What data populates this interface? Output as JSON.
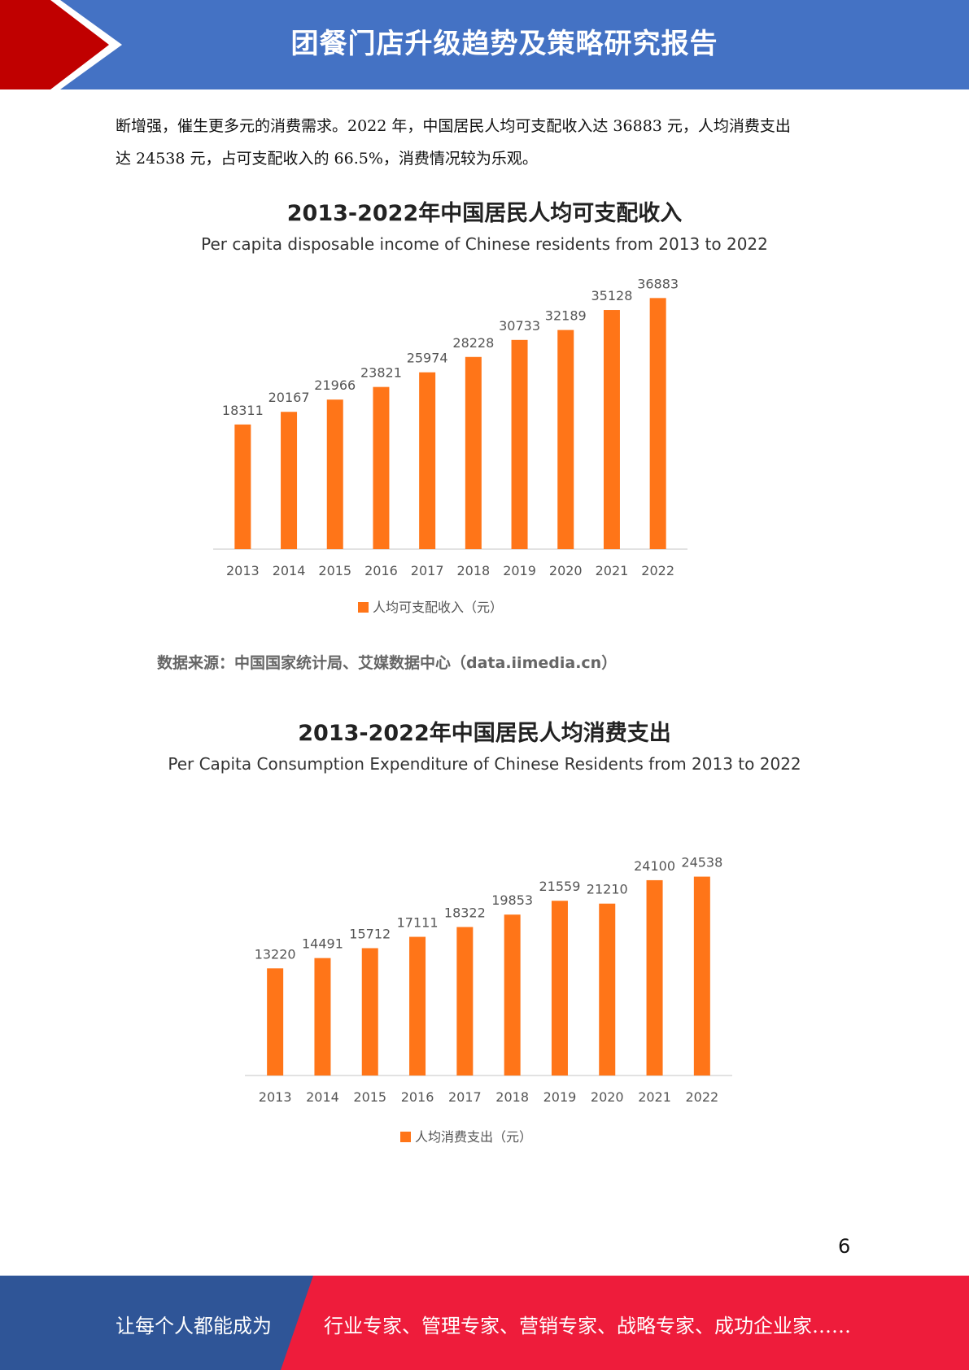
{
  "header": {
    "title": "团餐门店升级趋势及策略研究报告",
    "bar_color": "#4472c4",
    "accent_color": "#c00000"
  },
  "intro": {
    "line1": "断增强，催生更多元的消费需求。2022 年，中国居民人均可支配收入达 36883 元，人均消费支出",
    "line2": "达 24538 元，占可支配收入的 66.5%，消费情况较为乐观。"
  },
  "source": "数据来源：中国国家统计局、艾媒数据中心（data.iimedia.cn）",
  "page_number": "6",
  "footer": {
    "left_text": "让每个人都能成为",
    "right_text": "行业专家、管理专家、营销专家、战略专家、成功企业家……",
    "left_color": "#2f5597",
    "right_color": "#ee1c3b"
  },
  "chart_data": [
    {
      "type": "bar",
      "title": "2013-2022年中国居民人均可支配收入",
      "subtitle": "Per capita disposable income of Chinese residents from 2013 to 2022",
      "categories": [
        "2013",
        "2014",
        "2015",
        "2016",
        "2017",
        "2018",
        "2019",
        "2020",
        "2021",
        "2022"
      ],
      "series": [
        {
          "name": "人均可支配收入（元）",
          "values": [
            18311,
            20167,
            21966,
            23821,
            25974,
            28228,
            30733,
            32189,
            35128,
            36883
          ],
          "color": "#ff7518"
        }
      ],
      "ylim": [
        0,
        38000
      ],
      "grid": false,
      "legend_position": "bottom"
    },
    {
      "type": "bar",
      "title": "2013-2022年中国居民人均消费支出",
      "subtitle": "Per Capita Consumption Expenditure of Chinese Residents from 2013 to 2022",
      "categories": [
        "2013",
        "2014",
        "2015",
        "2016",
        "2017",
        "2018",
        "2019",
        "2020",
        "2021",
        "2022"
      ],
      "series": [
        {
          "name": "人均消费支出（元）",
          "values": [
            13220,
            14491,
            15712,
            17111,
            18322,
            19853,
            21559,
            21210,
            24100,
            24538
          ],
          "color": "#ff7518"
        }
      ],
      "ylim": [
        0,
        25800
      ],
      "grid": false,
      "legend_position": "bottom"
    }
  ]
}
